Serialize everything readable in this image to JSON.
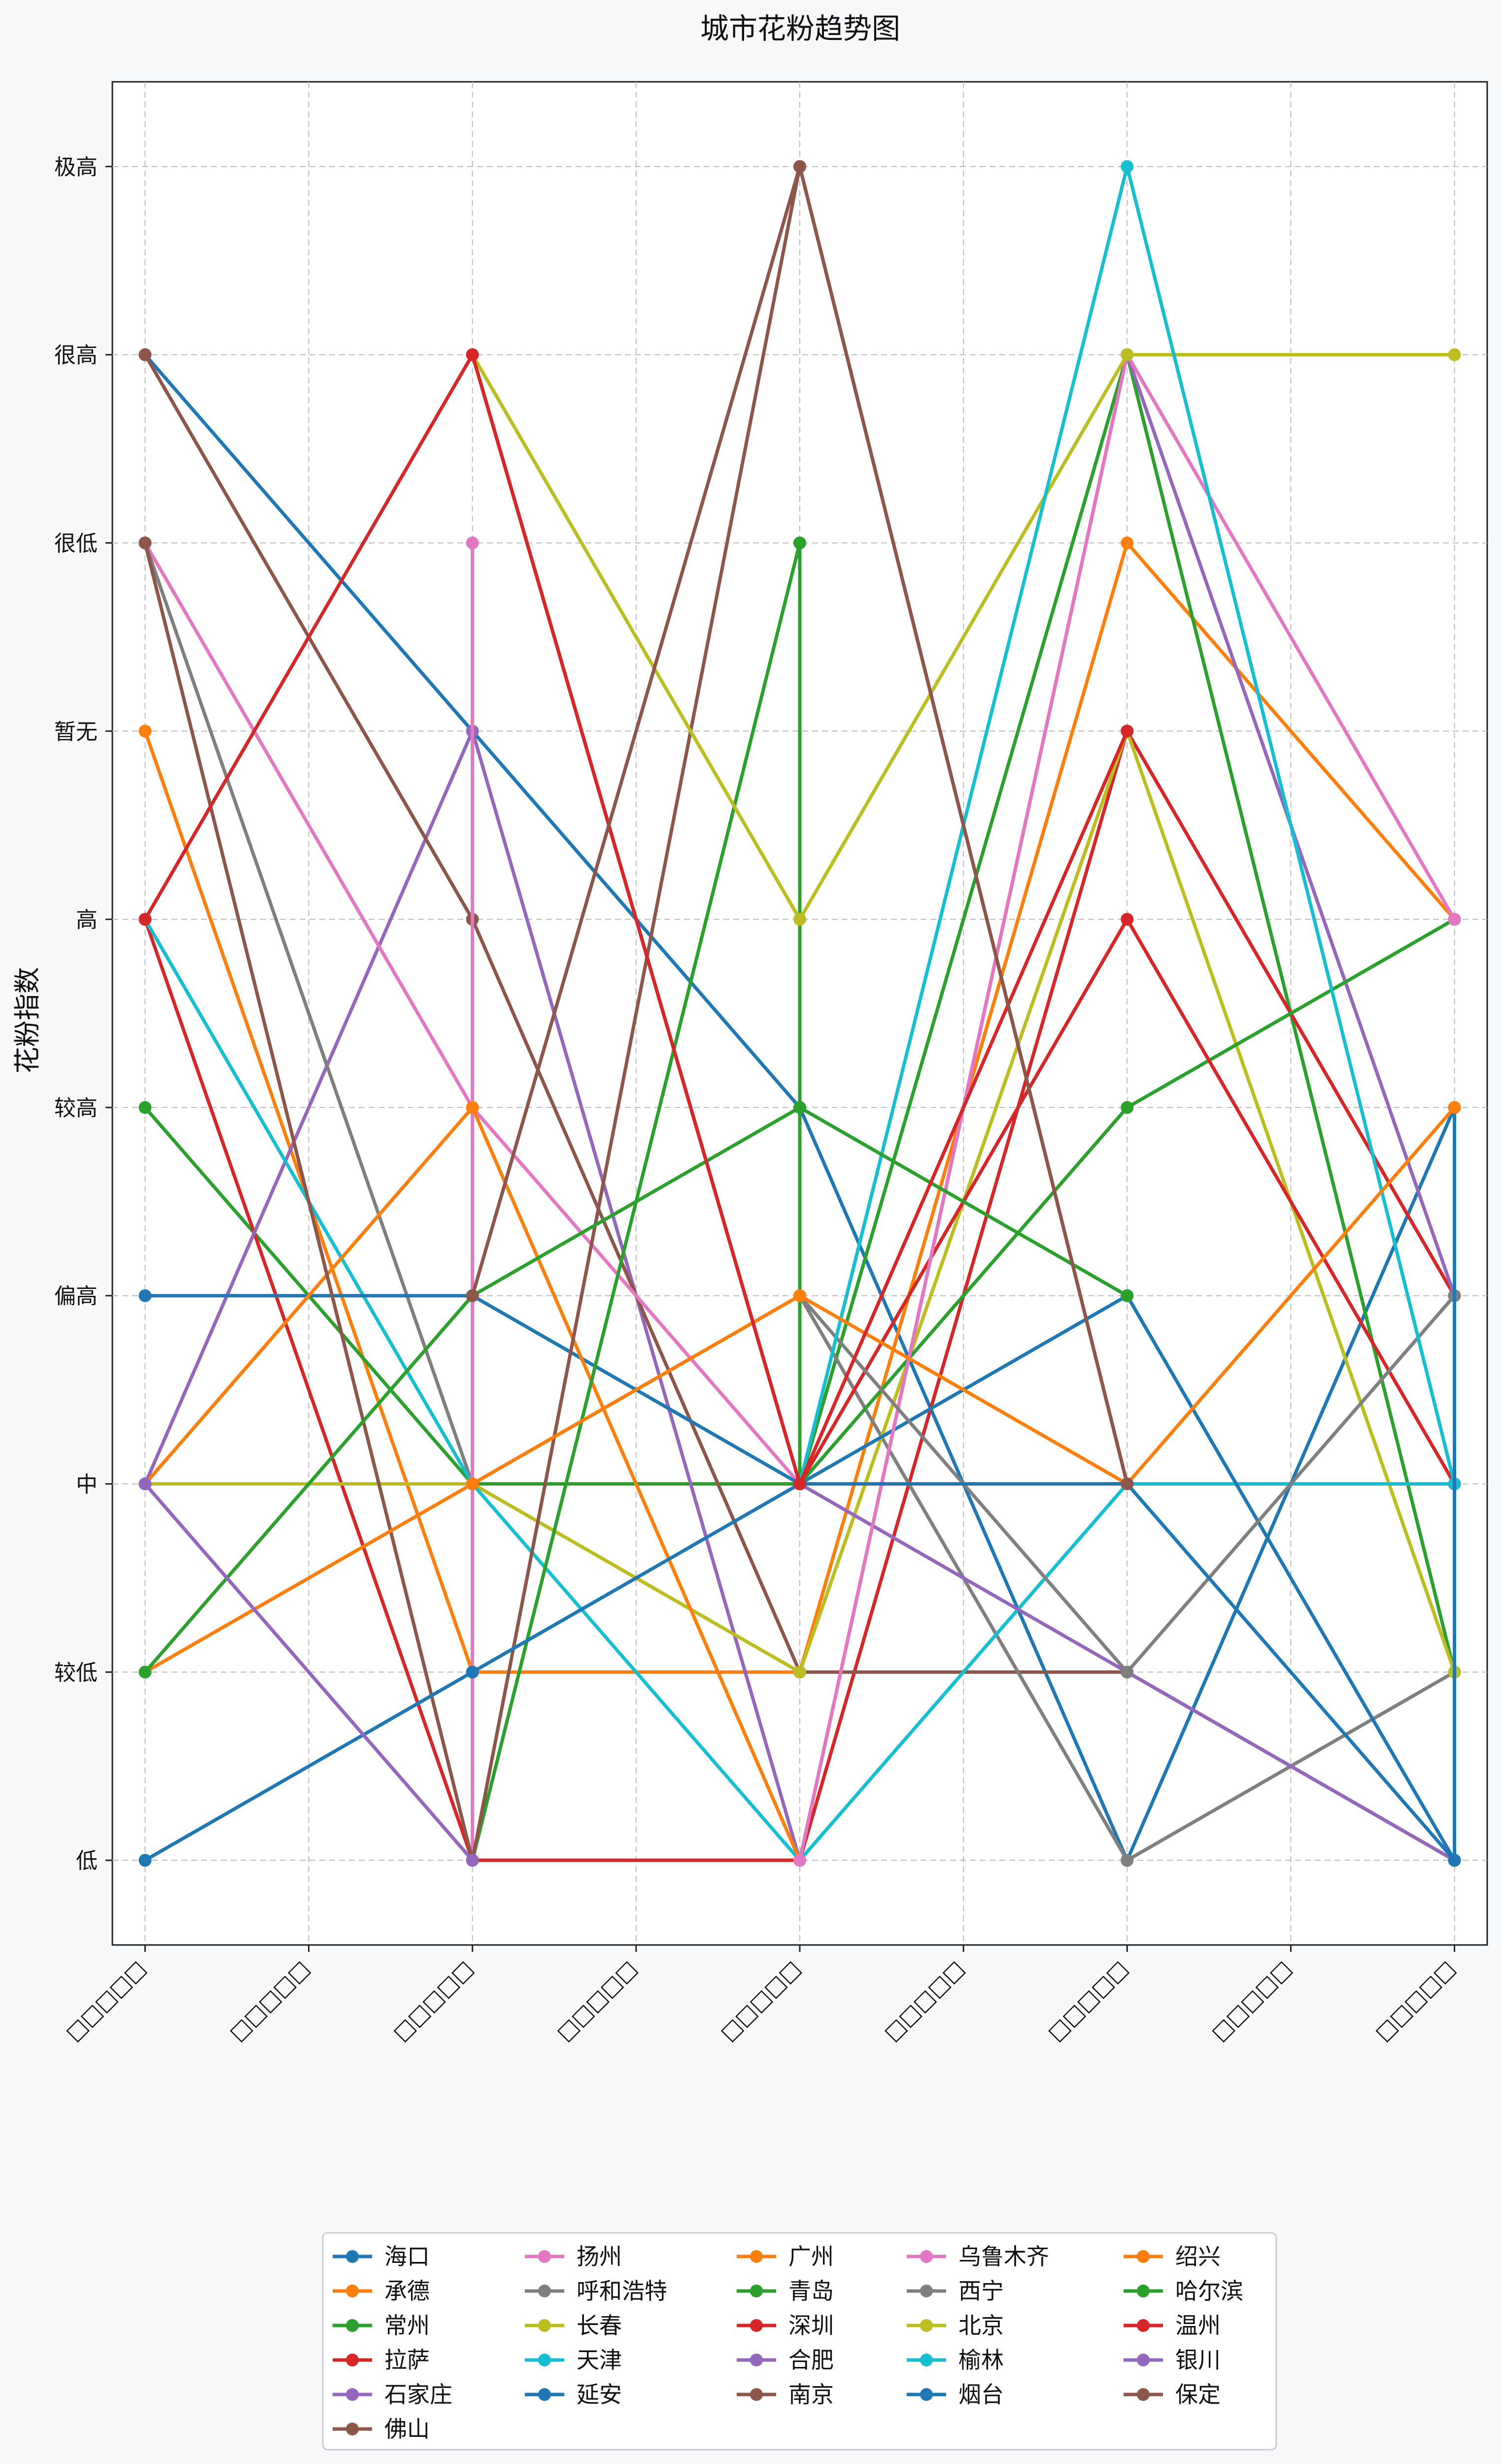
{
  "chart_data": {
    "type": "line",
    "title": "城市花粉趋势图",
    "xlabel": "",
    "ylabel": "花粉指数",
    "x_tick_labels": [
      "□□□□□",
      "□□□□□",
      "□□□□□",
      "□□□□□",
      "□□□□□",
      "□□□□□",
      "□□□□□",
      "□□□□□",
      "□□□□□"
    ],
    "y_categories": [
      "低",
      "较低",
      "中",
      "偏高",
      "较高",
      "高",
      "暂无",
      "很低",
      "很高",
      "极高"
    ],
    "ylim": [
      -0.45,
      9.45
    ],
    "xlim": [
      -0.2,
      8.2
    ],
    "grid": true,
    "legend_position": "bottom-center",
    "legend_columns": 5,
    "series": [
      {
        "name": "海口",
        "color": "#1f77b4",
        "points": [
          [
            0,
            8
          ],
          [
            2,
            6
          ],
          [
            4,
            4
          ],
          [
            6,
            0
          ],
          [
            8,
            4
          ]
        ]
      },
      {
        "name": "承德",
        "color": "#ff7f0e",
        "points": [
          [
            0,
            6
          ],
          [
            2,
            1
          ],
          [
            4,
            1
          ],
          [
            6,
            7
          ],
          [
            8,
            5
          ]
        ]
      },
      {
        "name": "常州",
        "color": "#2ca02c",
        "points": [
          [
            0,
            4
          ],
          [
            2,
            2
          ],
          [
            4,
            2
          ],
          [
            6,
            8
          ],
          [
            8,
            1
          ]
        ]
      },
      {
        "name": "拉萨",
        "color": "#d62728",
        "points": [
          [
            0,
            5
          ],
          [
            2,
            0
          ],
          [
            4,
            0
          ],
          [
            6,
            6
          ],
          [
            8,
            3
          ]
        ]
      },
      {
        "name": "石家庄",
        "color": "#9467bd",
        "points": [
          [
            0,
            2
          ],
          [
            2,
            6
          ],
          [
            4,
            0
          ],
          [
            6,
            8
          ],
          [
            8,
            3
          ]
        ]
      },
      {
        "name": "佛山",
        "color": "#8c564b",
        "points": [
          [
            0,
            8
          ],
          [
            2,
            5
          ],
          [
            4,
            1
          ],
          [
            6,
            1
          ],
          [
            8,
            0
          ]
        ]
      },
      {
        "name": "扬州",
        "color": "#e377c2",
        "points": [
          [
            0,
            7
          ],
          [
            2,
            4
          ],
          [
            4,
            2
          ],
          [
            6,
            2
          ],
          [
            8,
            2
          ]
        ]
      },
      {
        "name": "呼和浩特",
        "color": "#7f7f7f",
        "points": [
          [
            0,
            7
          ],
          [
            2,
            2
          ],
          [
            4,
            3
          ],
          [
            6,
            0
          ],
          [
            8,
            1
          ]
        ]
      },
      {
        "name": "长春",
        "color": "#bcbd22",
        "points": [
          [
            0,
            2
          ],
          [
            2,
            2
          ],
          [
            4,
            1
          ],
          [
            6,
            6
          ],
          [
            8,
            1
          ]
        ]
      },
      {
        "name": "天津",
        "color": "#17becf",
        "points": [
          [
            0,
            5
          ],
          [
            2,
            2
          ],
          [
            4,
            0
          ],
          [
            6,
            2
          ],
          [
            8,
            2
          ]
        ]
      },
      {
        "name": "延安",
        "color": "#1f77b4",
        "points": [
          [
            0,
            3
          ],
          [
            2,
            3
          ],
          [
            4,
            2
          ],
          [
            6,
            3
          ],
          [
            8,
            0
          ]
        ]
      },
      {
        "name": "扬州",
        "color": "#e377c2",
        "points": [
          [
            2,
            7
          ],
          [
            2,
            0
          ]
        ]
      },
      {
        "name": "广州",
        "color": "#ff7f0e",
        "points": [
          [
            0,
            2
          ],
          [
            2,
            4
          ],
          [
            4,
            0
          ]
        ]
      },
      {
        "name": "青岛",
        "color": "#2ca02c",
        "points": [
          [
            2,
            0
          ],
          [
            4,
            7
          ],
          [
            4,
            2
          ],
          [
            6,
            4
          ],
          [
            8,
            5
          ]
        ]
      },
      {
        "name": "深圳",
        "color": "#d62728",
        "points": [
          [
            2,
            8
          ],
          [
            4,
            2
          ],
          [
            6,
            5
          ],
          [
            8,
            2
          ]
        ]
      },
      {
        "name": "合肥",
        "color": "#9467bd",
        "points": [
          [
            4,
            2
          ],
          [
            6,
            1
          ],
          [
            8,
            0
          ]
        ]
      },
      {
        "name": "南京",
        "color": "#8c564b",
        "points": [
          [
            0,
            7
          ],
          [
            2,
            0
          ],
          [
            4,
            9
          ],
          [
            6,
            2
          ]
        ]
      },
      {
        "name": "乌鲁木齐",
        "color": "#e377c2",
        "points": [
          [
            4,
            0
          ],
          [
            6,
            8
          ],
          [
            8,
            5
          ]
        ]
      },
      {
        "name": "西宁",
        "color": "#7f7f7f",
        "points": [
          [
            4,
            3
          ],
          [
            6,
            1
          ],
          [
            8,
            3
          ]
        ]
      },
      {
        "name": "北京",
        "color": "#bcbd22",
        "points": [
          [
            2,
            8
          ],
          [
            4,
            5
          ],
          [
            6,
            8
          ],
          [
            8,
            8
          ]
        ]
      },
      {
        "name": "榆林",
        "color": "#17becf",
        "points": [
          [
            4,
            2
          ],
          [
            6,
            9
          ],
          [
            8,
            2
          ]
        ]
      },
      {
        "name": "烟台",
        "color": "#1f77b4",
        "points": [
          [
            0,
            0
          ],
          [
            2,
            1
          ],
          [
            4,
            2
          ],
          [
            6,
            2
          ],
          [
            8,
            0
          ],
          [
            8,
            4
          ]
        ]
      },
      {
        "name": "绍兴",
        "color": "#ff7f0e",
        "points": [
          [
            0,
            1
          ],
          [
            2,
            2
          ],
          [
            4,
            3
          ],
          [
            6,
            2
          ],
          [
            8,
            4
          ]
        ]
      },
      {
        "name": "哈尔滨",
        "color": "#2ca02c",
        "points": [
          [
            0,
            1
          ],
          [
            2,
            3
          ],
          [
            4,
            4
          ],
          [
            6,
            3
          ]
        ]
      },
      {
        "name": "温州",
        "color": "#d62728",
        "points": [
          [
            0,
            5
          ],
          [
            2,
            8
          ],
          [
            4,
            2
          ],
          [
            6,
            6
          ]
        ]
      },
      {
        "name": "银川",
        "color": "#9467bd",
        "points": [
          [
            0,
            2
          ],
          [
            2,
            0
          ]
        ]
      },
      {
        "name": "保定",
        "color": "#8c564b",
        "points": [
          [
            2,
            3
          ],
          [
            4,
            9
          ],
          [
            6,
            2
          ]
        ]
      }
    ],
    "legend": {
      "columns": [
        [
          {
            "name": "海口",
            "color": "#1f77b4"
          },
          {
            "name": "承德",
            "color": "#ff7f0e"
          },
          {
            "name": "常州",
            "color": "#2ca02c"
          },
          {
            "name": "拉萨",
            "color": "#d62728"
          },
          {
            "name": "石家庄",
            "color": "#9467bd"
          },
          {
            "name": "佛山",
            "color": "#8c564b"
          }
        ],
        [
          {
            "name": "扬州",
            "color": "#e377c2"
          },
          {
            "name": "呼和浩特",
            "color": "#7f7f7f"
          },
          {
            "name": "长春",
            "color": "#bcbd22"
          },
          {
            "name": "天津",
            "color": "#17becf"
          },
          {
            "name": "延安",
            "color": "#1f77b4"
          }
        ],
        [
          {
            "name": "广州",
            "color": "#ff7f0e"
          },
          {
            "name": "青岛",
            "color": "#2ca02c"
          },
          {
            "name": "深圳",
            "color": "#d62728"
          },
          {
            "name": "合肥",
            "color": "#9467bd"
          },
          {
            "name": "南京",
            "color": "#8c564b"
          }
        ],
        [
          {
            "name": "乌鲁木齐",
            "color": "#e377c2"
          },
          {
            "name": "西宁",
            "color": "#7f7f7f"
          },
          {
            "name": "北京",
            "color": "#bcbd22"
          },
          {
            "name": "榆林",
            "color": "#17becf"
          },
          {
            "name": "烟台",
            "color": "#1f77b4"
          }
        ],
        [
          {
            "name": "绍兴",
            "color": "#ff7f0e"
          },
          {
            "name": "哈尔滨",
            "color": "#2ca02c"
          },
          {
            "name": "温州",
            "color": "#d62728"
          },
          {
            "name": "银川",
            "color": "#9467bd"
          },
          {
            "name": "保定",
            "color": "#8c564b"
          }
        ]
      ]
    }
  }
}
